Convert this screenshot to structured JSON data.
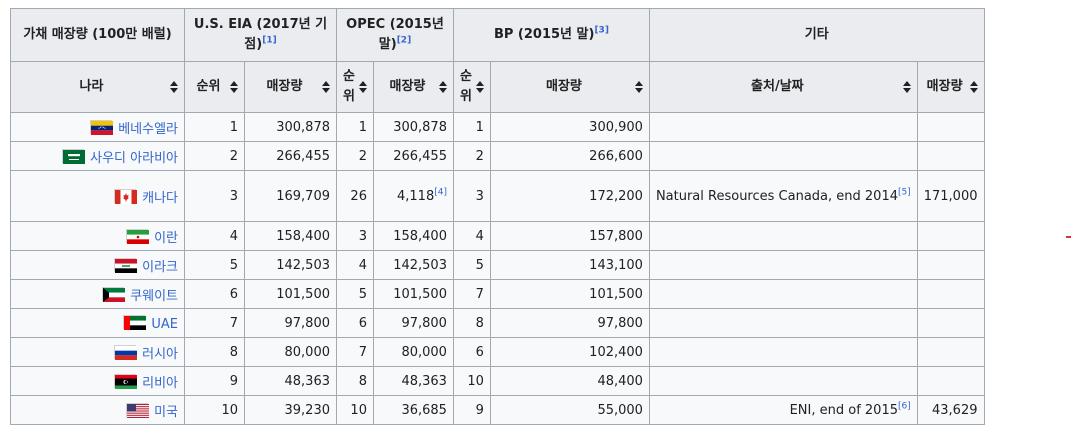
{
  "headers": {
    "group_reserves": "가채 매장량 (100만 배럴)",
    "group_eia": "U.S. EIA (2017년 기점)",
    "group_eia_ref": "[1]",
    "group_opec": "OPEC (2015년 말)",
    "group_opec_ref": "[2]",
    "group_bp": "BP (2015년 말)",
    "group_bp_ref": "[3]",
    "group_other": "기타",
    "col_country": "나라",
    "col_eia_rank": "순위",
    "col_eia_reserves": "매장량",
    "col_opec_rank": "순위",
    "col_opec_reserves": "매장량",
    "col_bp_rank": "순위",
    "col_bp_reserves": "매장량",
    "col_source": "출처/날짜",
    "col_other_reserves": "매장량"
  },
  "rows": [
    {
      "country": "베네수엘라",
      "flag": "flag-venezuela",
      "eia_rank": "1",
      "eia": "300,878",
      "opec_rank": "1",
      "opec": "300,878",
      "opec_ref": "",
      "bp_rank": "1",
      "bp": "300,900",
      "source": "",
      "source_ref": "",
      "other": ""
    },
    {
      "country": "사우디 아라비아",
      "flag": "flag-saudi-arabia",
      "eia_rank": "2",
      "eia": "266,455",
      "opec_rank": "2",
      "opec": "266,455",
      "opec_ref": "",
      "bp_rank": "2",
      "bp": "266,600",
      "source": "",
      "source_ref": "",
      "other": ""
    },
    {
      "country": "캐나다",
      "flag": "flag-canada",
      "eia_rank": "3",
      "eia": "169,709",
      "opec_rank": "26",
      "opec": "4,118",
      "opec_ref": "[4]",
      "bp_rank": "3",
      "bp": "172,200",
      "source": "Natural Resources Canada, end 2014",
      "source_ref": "[5]",
      "other": "171,000"
    },
    {
      "country": "이란",
      "flag": "flag-iran",
      "eia_rank": "4",
      "eia": "158,400",
      "opec_rank": "3",
      "opec": "158,400",
      "opec_ref": "",
      "bp_rank": "4",
      "bp": "157,800",
      "source": "",
      "source_ref": "",
      "other": ""
    },
    {
      "country": "이라크",
      "flag": "flag-iraq",
      "eia_rank": "5",
      "eia": "142,503",
      "opec_rank": "4",
      "opec": "142,503",
      "opec_ref": "",
      "bp_rank": "5",
      "bp": "143,100",
      "source": "",
      "source_ref": "",
      "other": ""
    },
    {
      "country": "쿠웨이트",
      "flag": "flag-kuwait",
      "eia_rank": "6",
      "eia": "101,500",
      "opec_rank": "5",
      "opec": "101,500",
      "opec_ref": "",
      "bp_rank": "7",
      "bp": "101,500",
      "source": "",
      "source_ref": "",
      "other": ""
    },
    {
      "country": "UAE",
      "flag": "flag-uae",
      "eia_rank": "7",
      "eia": "97,800",
      "opec_rank": "6",
      "opec": "97,800",
      "opec_ref": "",
      "bp_rank": "8",
      "bp": "97,800",
      "source": "",
      "source_ref": "",
      "other": ""
    },
    {
      "country": "러시아",
      "flag": "flag-russia",
      "eia_rank": "8",
      "eia": "80,000",
      "opec_rank": "7",
      "opec": "80,000",
      "opec_ref": "",
      "bp_rank": "6",
      "bp": "102,400",
      "source": "",
      "source_ref": "",
      "other": ""
    },
    {
      "country": "리비아",
      "flag": "flag-libya",
      "eia_rank": "9",
      "eia": "48,363",
      "opec_rank": "8",
      "opec": "48,363",
      "opec_ref": "",
      "bp_rank": "10",
      "bp": "48,400",
      "source": "",
      "source_ref": "",
      "other": ""
    },
    {
      "country": "미국",
      "flag": "flag-usa",
      "eia_rank": "10",
      "eia": "39,230",
      "opec_rank": "10",
      "opec": "36,685",
      "opec_ref": "",
      "bp_rank": "9",
      "bp": "55,000",
      "source": "ENI, end of 2015",
      "source_ref": "[6]",
      "other": "43,629"
    }
  ]
}
